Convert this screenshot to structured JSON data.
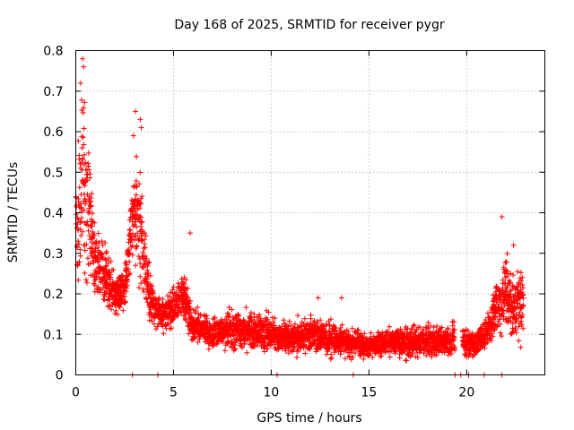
{
  "chart_data": {
    "type": "scatter",
    "title": "Day 168 of 2025, SRMTID for receiver pygr",
    "xlabel": "GPS time / hours",
    "ylabel": "SRMTID / TECUs",
    "xlim": [
      0,
      24
    ],
    "ylim": [
      0,
      0.8
    ],
    "xticks": [
      0,
      5,
      10,
      15,
      20
    ],
    "xtick_labels": [
      "0",
      "5",
      "10",
      "15",
      "20"
    ],
    "yticks": [
      0,
      0.1,
      0.2,
      0.3,
      0.4,
      0.5,
      0.6,
      0.7,
      0.8
    ],
    "ytick_labels": [
      "0",
      "0.1",
      "0.2",
      "0.3",
      "0.4",
      "0.5",
      "0.6",
      "0.7",
      "0.8"
    ],
    "grid": true,
    "marker": "+",
    "color": "#ff0000",
    "envelope": [
      {
        "x": 0.0,
        "base": 0.3,
        "spread": 0.25
      },
      {
        "x": 0.3,
        "base": 0.5,
        "spread": 0.28
      },
      {
        "x": 0.6,
        "base": 0.42,
        "spread": 0.25
      },
      {
        "x": 1.0,
        "base": 0.28,
        "spread": 0.12
      },
      {
        "x": 1.5,
        "base": 0.25,
        "spread": 0.1
      },
      {
        "x": 2.0,
        "base": 0.2,
        "spread": 0.06
      },
      {
        "x": 2.5,
        "base": 0.21,
        "spread": 0.08
      },
      {
        "x": 3.0,
        "base": 0.42,
        "spread": 0.18
      },
      {
        "x": 3.3,
        "base": 0.38,
        "spread": 0.2
      },
      {
        "x": 3.7,
        "base": 0.22,
        "spread": 0.1
      },
      {
        "x": 4.0,
        "base": 0.16,
        "spread": 0.06
      },
      {
        "x": 4.5,
        "base": 0.15,
        "spread": 0.05
      },
      {
        "x": 5.0,
        "base": 0.16,
        "spread": 0.07
      },
      {
        "x": 5.5,
        "base": 0.2,
        "spread": 0.07
      },
      {
        "x": 6.0,
        "base": 0.12,
        "spread": 0.05
      },
      {
        "x": 7.0,
        "base": 0.1,
        "spread": 0.05
      },
      {
        "x": 8.0,
        "base": 0.11,
        "spread": 0.06
      },
      {
        "x": 9.0,
        "base": 0.11,
        "spread": 0.06
      },
      {
        "x": 10.0,
        "base": 0.1,
        "spread": 0.05
      },
      {
        "x": 11.0,
        "base": 0.09,
        "spread": 0.05
      },
      {
        "x": 12.0,
        "base": 0.1,
        "spread": 0.05
      },
      {
        "x": 13.0,
        "base": 0.09,
        "spread": 0.05
      },
      {
        "x": 14.0,
        "base": 0.08,
        "spread": 0.04
      },
      {
        "x": 15.0,
        "base": 0.07,
        "spread": 0.04
      },
      {
        "x": 16.0,
        "base": 0.08,
        "spread": 0.04
      },
      {
        "x": 17.0,
        "base": 0.08,
        "spread": 0.05
      },
      {
        "x": 18.0,
        "base": 0.08,
        "spread": 0.05
      },
      {
        "x": 19.0,
        "base": 0.08,
        "spread": 0.05
      },
      {
        "x": 19.5,
        "base": 0.09,
        "spread": 0.06
      },
      {
        "x": 20.0,
        "base": 0.08,
        "spread": 0.04
      },
      {
        "x": 20.5,
        "base": 0.08,
        "spread": 0.04
      },
      {
        "x": 21.0,
        "base": 0.1,
        "spread": 0.05
      },
      {
        "x": 21.5,
        "base": 0.16,
        "spread": 0.08
      },
      {
        "x": 22.0,
        "base": 0.2,
        "spread": 0.12
      },
      {
        "x": 22.5,
        "base": 0.16,
        "spread": 0.1
      },
      {
        "x": 22.8,
        "base": 0.18,
        "spread": 0.12
      }
    ],
    "gaps": [
      [
        19.4,
        19.8
      ]
    ],
    "x_end": 22.9,
    "zero_points": [
      2.9,
      4.2,
      10.3,
      14.2,
      19.4,
      19.7,
      20.1,
      20.9,
      21.8
    ],
    "outliers": [
      {
        "x": 0.35,
        "y": 0.78
      },
      {
        "x": 0.4,
        "y": 0.76
      },
      {
        "x": 0.25,
        "y": 0.72
      },
      {
        "x": 3.05,
        "y": 0.65
      },
      {
        "x": 3.3,
        "y": 0.63
      },
      {
        "x": 3.35,
        "y": 0.61
      },
      {
        "x": 2.95,
        "y": 0.59
      },
      {
        "x": 21.8,
        "y": 0.39
      },
      {
        "x": 5.85,
        "y": 0.35
      },
      {
        "x": 22.4,
        "y": 0.32
      },
      {
        "x": 12.4,
        "y": 0.19
      },
      {
        "x": 13.6,
        "y": 0.19
      }
    ]
  }
}
